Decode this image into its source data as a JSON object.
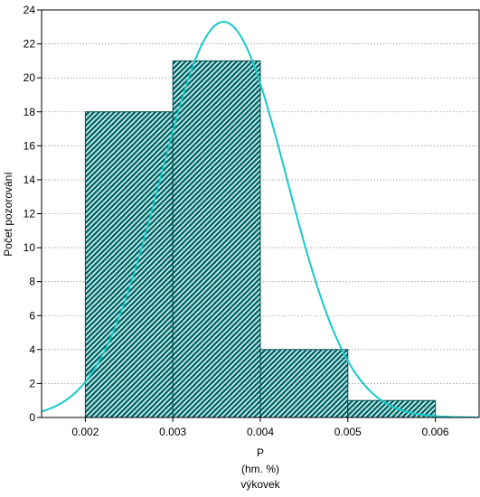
{
  "chart_data": {
    "type": "bar",
    "variant": "histogram with fitted normal curve",
    "bins": [
      {
        "x0": 0.002,
        "x1": 0.003,
        "count": 18
      },
      {
        "x0": 0.003,
        "x1": 0.004,
        "count": 21
      },
      {
        "x0": 0.004,
        "x1": 0.005,
        "count": 4
      },
      {
        "x0": 0.005,
        "x1": 0.006,
        "count": 1
      }
    ],
    "curve": {
      "kind": "normal",
      "mean": 0.00358,
      "sd": 0.00072,
      "peak": 23.3
    },
    "xlabel_lines": [
      "P",
      "(hm. %)",
      "výkovek"
    ],
    "ylabel": "Počet pozorování",
    "xlim": [
      0.0015,
      0.0065
    ],
    "ylim": [
      0,
      24
    ],
    "x_ticks": [
      0.002,
      0.003,
      0.004,
      0.005,
      0.006
    ],
    "x_tick_labels": [
      "0.002",
      "0.003",
      "0.004",
      "0.005",
      "0.006"
    ],
    "y_ticks": [
      0,
      2,
      4,
      6,
      8,
      10,
      12,
      14,
      16,
      18,
      20,
      22,
      24
    ],
    "grid": "horizontal dotted",
    "colors": {
      "bar_fill": "#006b6b",
      "bar_edge": "#004a4a",
      "curve": "#19c8c8"
    }
  }
}
